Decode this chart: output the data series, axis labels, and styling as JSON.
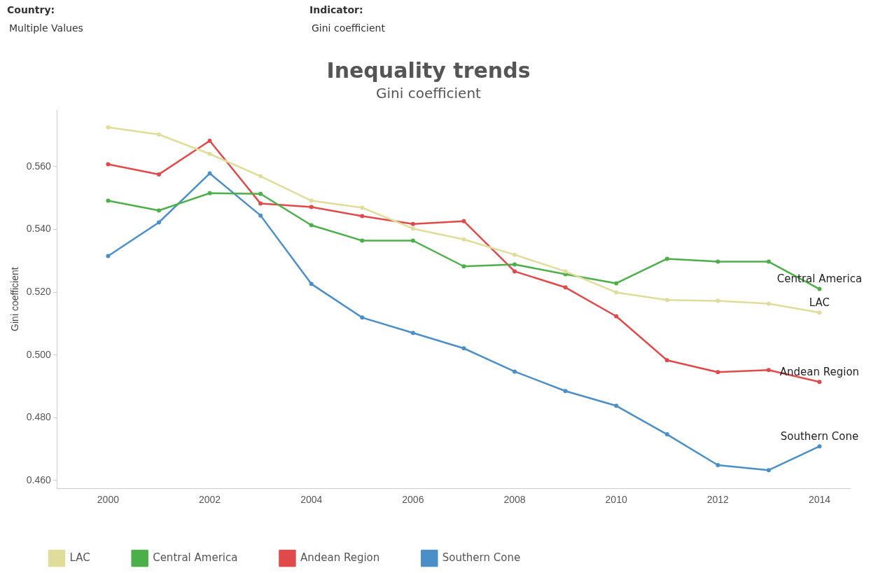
{
  "chart_data": {
    "type": "line",
    "title": "Inequality trends",
    "subtitle": "Gini coefficient",
    "ylabel": "Gini coefficient",
    "annotations": [
      "Country:",
      "Multiple Values",
      "Indicator:",
      "Gini coefficient"
    ],
    "x": [
      2000,
      2001,
      2002,
      2003,
      2004,
      2005,
      2006,
      2007,
      2008,
      2009,
      2010,
      2011,
      2012,
      2013,
      2014
    ],
    "xlim": [
      1999,
      2014.6
    ],
    "xticks": [
      2000,
      2002,
      2004,
      2006,
      2008,
      2010,
      2012,
      2014
    ],
    "ylim": [
      0.4575,
      0.578
    ],
    "yticks": [
      {
        "value": 0.46,
        "label": "0.460"
      },
      {
        "value": 0.48,
        "label": "0.480"
      },
      {
        "value": 0.5,
        "label": "0.500"
      },
      {
        "value": 0.52,
        "label": "0.520"
      },
      {
        "value": 0.54,
        "label": "0.540"
      },
      {
        "value": 0.56,
        "label": "0.560"
      }
    ],
    "grid": false,
    "legend": "bottom left",
    "marker": "circle",
    "line_style": "solid",
    "series": [
      {
        "name": "LAC",
        "color": "#e0dc9a",
        "values": [
          0.5725,
          0.5702,
          0.564,
          0.5569,
          0.5491,
          0.5469,
          0.5402,
          0.5368,
          0.5319,
          0.5266,
          0.5199,
          0.5175,
          0.5172,
          0.5163,
          0.5135
        ]
      },
      {
        "name": "Central America",
        "color": "#4daf4a",
        "values": [
          0.5491,
          0.546,
          0.5515,
          0.5513,
          0.5413,
          0.5364,
          0.5364,
          0.5282,
          0.5288,
          0.5257,
          0.5228,
          0.5306,
          0.5297,
          0.5297,
          0.521
        ]
      },
      {
        "name": "Andean Region",
        "color": "#e04a4a",
        "values": [
          0.5607,
          0.5575,
          0.5682,
          0.5482,
          0.5471,
          0.5442,
          0.5417,
          0.5426,
          0.5266,
          0.5215,
          0.5123,
          0.4983,
          0.4945,
          0.4952,
          0.4914
        ]
      },
      {
        "name": "Southern Cone",
        "color": "#4a8fc8",
        "values": [
          0.5315,
          0.5422,
          0.5578,
          0.5444,
          0.5226,
          0.5119,
          0.507,
          0.5021,
          0.4947,
          0.4885,
          0.4838,
          0.4747,
          0.4649,
          0.4633,
          0.4709
        ]
      }
    ]
  }
}
